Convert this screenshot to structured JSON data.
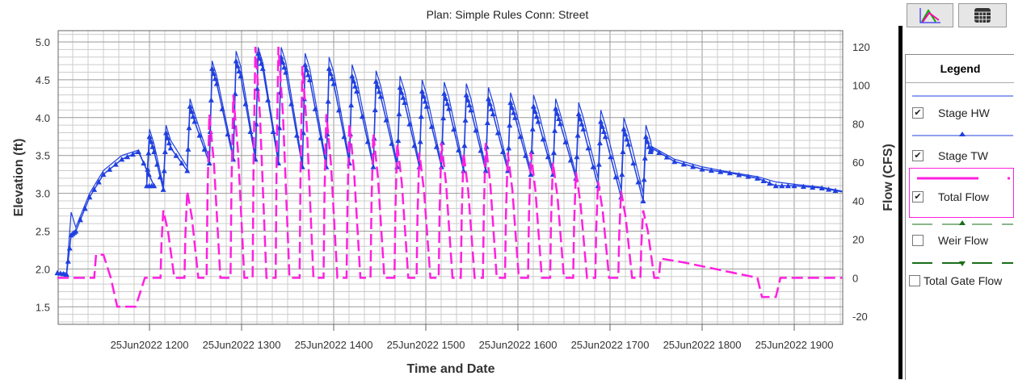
{
  "chart_data": {
    "type": "line",
    "title": "Plan: Simple Rules     Conn: Street",
    "xlabel": "Time and Date",
    "ylabel_left": "Elevation (ft)",
    "ylabel_right": "Flow (CFS)",
    "xlim_hours": [
      11.0,
      19.52
    ],
    "ylim_left": [
      1.27,
      5.15
    ],
    "ylim_right": [
      -25,
      130
    ],
    "x_ticks": [
      {
        "h": 12,
        "label": "25Jun2022 1200"
      },
      {
        "h": 13,
        "label": "25Jun2022 1300"
      },
      {
        "h": 14,
        "label": "25Jun2022 1400"
      },
      {
        "h": 15,
        "label": "25Jun2022 1500"
      },
      {
        "h": 16,
        "label": "25Jun2022 1600"
      },
      {
        "h": 17,
        "label": "25Jun2022 1700"
      },
      {
        "h": 18,
        "label": "25Jun2022 1800"
      },
      {
        "h": 19,
        "label": "25Jun2022 1900"
      }
    ],
    "y_ticks_left": [
      "1.5",
      "2.0",
      "2.5",
      "3.0",
      "3.5",
      "4.0",
      "4.5",
      "5.0"
    ],
    "y_ticks_right": [
      "-20",
      "0",
      "20",
      "40",
      "60",
      "80",
      "100",
      "120"
    ],
    "cycle_times": [
      12.0,
      12.18,
      12.44,
      12.68,
      12.94,
      13.18,
      13.43,
      13.69,
      13.95,
      14.2,
      14.46,
      14.72,
      14.96,
      15.2,
      15.44,
      15.68,
      15.92,
      16.17,
      16.41,
      16.66,
      16.9,
      17.15,
      17.39
    ],
    "series": [
      {
        "name": "Stage HW",
        "color": "#2040e0",
        "pre": [
          [
            11.0,
            1.95
          ],
          [
            11.1,
            1.95
          ],
          [
            11.15,
            2.75
          ],
          [
            11.2,
            2.55
          ],
          [
            11.35,
            3.0
          ],
          [
            11.5,
            3.3
          ],
          [
            11.7,
            3.5
          ],
          [
            11.88,
            3.57
          ],
          [
            11.97,
            3.3
          ]
        ],
        "peaks": [
          3.85,
          3.9,
          4.25,
          4.75,
          4.88,
          4.93,
          4.93,
          4.85,
          4.8,
          4.7,
          4.62,
          4.55,
          4.5,
          4.47,
          4.45,
          4.4,
          4.33,
          4.3,
          4.25,
          4.2,
          4.1,
          4.0,
          3.9
        ],
        "troughs": [
          3.15,
          3.1,
          3.35,
          3.45,
          3.5,
          3.5,
          3.45,
          3.4,
          3.4,
          3.45,
          3.4,
          3.4,
          3.4,
          3.4,
          3.35,
          3.35,
          3.35,
          3.3,
          3.3,
          3.25,
          3.2,
          3.05,
          3.0
        ],
        "post": [
          [
            17.45,
            3.62
          ],
          [
            17.7,
            3.45
          ],
          [
            18.0,
            3.35
          ],
          [
            18.3,
            3.28
          ],
          [
            18.6,
            3.22
          ],
          [
            18.8,
            3.15
          ],
          [
            19.0,
            3.12
          ],
          [
            19.3,
            3.08
          ],
          [
            19.52,
            3.03
          ]
        ]
      },
      {
        "name": "Stage TW",
        "color": "#2040e0",
        "pre": [
          [
            11.0,
            1.95
          ],
          [
            11.1,
            1.93
          ],
          [
            11.15,
            2.45
          ],
          [
            11.2,
            2.5
          ],
          [
            11.35,
            2.95
          ],
          [
            11.5,
            3.25
          ],
          [
            11.7,
            3.45
          ],
          [
            11.88,
            3.55
          ],
          [
            12.05,
            3.1
          ]
        ],
        "peaks": [
          3.75,
          3.8,
          4.15,
          4.65,
          4.75,
          4.85,
          4.8,
          4.7,
          4.65,
          4.55,
          4.48,
          4.4,
          4.35,
          4.32,
          4.3,
          4.25,
          4.2,
          4.15,
          4.12,
          4.05,
          3.95,
          3.85,
          3.75
        ],
        "troughs": [
          3.1,
          3.05,
          3.3,
          3.4,
          3.45,
          3.45,
          3.4,
          3.35,
          3.35,
          3.4,
          3.35,
          3.35,
          3.35,
          3.35,
          3.3,
          3.3,
          3.3,
          3.25,
          3.25,
          3.2,
          3.1,
          2.95,
          2.9
        ],
        "post": [
          [
            17.45,
            3.6
          ],
          [
            17.7,
            3.42
          ],
          [
            18.0,
            3.32
          ],
          [
            18.3,
            3.27
          ],
          [
            18.6,
            3.2
          ],
          [
            18.8,
            3.1
          ],
          [
            19.0,
            3.1
          ],
          [
            19.3,
            3.07
          ],
          [
            19.52,
            3.02
          ]
        ]
      },
      {
        "name": "Total Flow",
        "color": "#ff20e0",
        "pre": [
          [
            11.0,
            0
          ],
          [
            11.4,
            0
          ],
          [
            11.42,
            12
          ],
          [
            11.5,
            12
          ],
          [
            11.58,
            0
          ],
          [
            11.65,
            -15
          ],
          [
            11.85,
            -15
          ],
          [
            11.95,
            0
          ]
        ],
        "peaks": [
          0,
          35,
          45,
          85,
          95,
          120,
          120,
          110,
          85,
          80,
          75,
          70,
          65,
          70,
          65,
          70,
          65,
          65,
          60,
          55,
          50,
          45,
          35
        ],
        "post": [
          [
            17.55,
            10
          ],
          [
            17.8,
            8
          ],
          [
            18.1,
            5
          ],
          [
            18.4,
            2
          ],
          [
            18.6,
            0
          ],
          [
            18.65,
            -10
          ],
          [
            18.8,
            -10
          ],
          [
            18.85,
            0
          ],
          [
            19.52,
            0
          ]
        ]
      },
      {
        "name": "Weir Flow",
        "color": "#1a6e1a"
      },
      {
        "name": "Total Gate Flow",
        "color": "#1a6e1a"
      }
    ],
    "grid": true
  },
  "legend": {
    "title": "Legend",
    "items": [
      {
        "label": "Stage HW",
        "checked": true,
        "mark": "✔"
      },
      {
        "label": "Stage TW",
        "checked": true,
        "mark": "✔"
      },
      {
        "label": "Total Flow",
        "checked": true,
        "mark": "✔"
      },
      {
        "label": "Weir Flow",
        "checked": false,
        "mark": ""
      },
      {
        "label": "Total Gate Flow",
        "checked": false,
        "mark": ""
      }
    ]
  },
  "toolbar": {
    "plot_icon": "plot-icon",
    "table_icon": "table-icon"
  }
}
